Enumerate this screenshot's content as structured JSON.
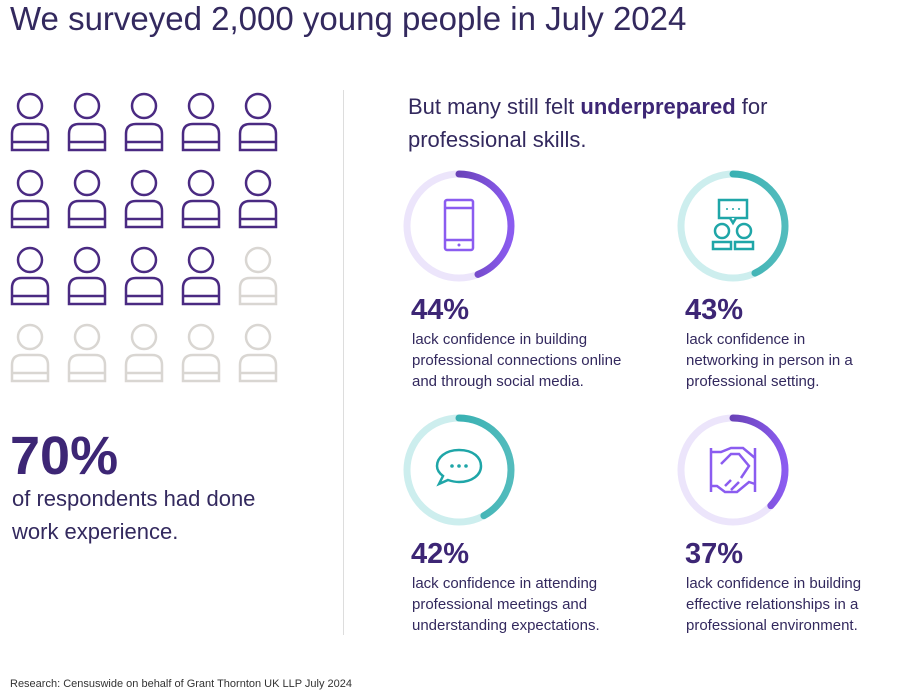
{
  "title": "We surveyed 2,000 young people in July 2024",
  "people": {
    "total": 20,
    "highlighted": 14,
    "colors": {
      "on": "#4a2a82",
      "off": "#d9d6d2"
    }
  },
  "left_stat": {
    "value": "70%",
    "line1": "of respondents had done",
    "line2": "work experience."
  },
  "heading": {
    "pre": "But many still felt ",
    "bold": "underprepared",
    "post": " for",
    "line2": "professional skills."
  },
  "stats": [
    {
      "value": "44%",
      "percent": 44,
      "icon": "smartphone-icon",
      "theme": "purple",
      "lines": [
        "lack confidence in building",
        "professional connections online",
        "and through social media."
      ]
    },
    {
      "value": "43%",
      "percent": 43,
      "icon": "networking-icon",
      "theme": "teal",
      "lines": [
        "lack confidence in",
        "networking in person in a",
        "professional setting."
      ]
    },
    {
      "value": "42%",
      "percent": 42,
      "icon": "speech-bubble-icon",
      "theme": "teal",
      "lines": [
        "lack confidence in attending",
        "professional meetings and",
        "understanding expectations."
      ]
    },
    {
      "value": "37%",
      "percent": 37,
      "icon": "handshake-icon",
      "theme": "purple",
      "lines": [
        "lack confidence in building",
        "effective relationships in a",
        "professional environment."
      ]
    }
  ],
  "colors": {
    "purple": "#8b5cf0",
    "purple_dark": "#4a2a82",
    "purple_track": "#ece5fb",
    "teal": "#1fa6a8",
    "teal_track": "#cdeeee"
  },
  "footer": "Research: Censuswide on behalf of Grant Thornton UK LLP July 2024"
}
